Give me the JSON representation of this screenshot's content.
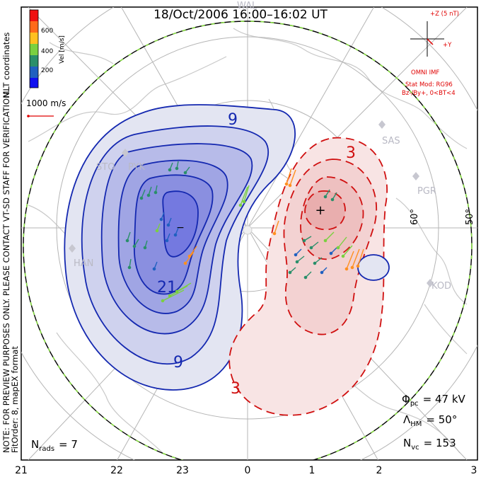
{
  "title": "18/Oct/2006  16:00–16:02  UT",
  "side_text": {
    "coord_system": "MLT coordinates",
    "preview_notice": "NOTE: FOR PREVIEW PURPOSES ONLY. PLEASE CONTACT VT-SD STAFF FOR VERIFICATION.",
    "fit_info": "FitOrder: 8, mapEX format"
  },
  "colorbar": {
    "label": "Vel [m/s]",
    "ticks": [
      "600",
      "400",
      "200"
    ],
    "colors": [
      "#f01010",
      "#ff6a1a",
      "#ffc020",
      "#7ad040",
      "#2a8f6a",
      "#2060c0",
      "#1010f0"
    ]
  },
  "scale_vector": {
    "label": "1000 m/s",
    "color": "#e00000"
  },
  "imf_panel": {
    "z_label": "+Z (5 nT)",
    "y_label": "+Y",
    "source": "OMNI IMF",
    "model_line1": "Stat Mod: RG96",
    "model_line2": "Bz-/By+, 0<BT<4",
    "color": "#e00000"
  },
  "contour_labels": [
    "9",
    "21",
    "9",
    "3",
    "3"
  ],
  "contour_colors": {
    "negative": "#1020b0",
    "positive": "#d01010"
  },
  "stations": [
    "STO",
    "PYK",
    "HAN",
    "SAS",
    "PGR",
    "KOD",
    "WAL"
  ],
  "latitude_labels": [
    "60°",
    "50°"
  ],
  "mlt_labels": [
    "21",
    "22",
    "23",
    "0",
    "1",
    "2",
    "3"
  ],
  "stats": {
    "phi_pc": {
      "symbol": "Φ",
      "sub": "pc",
      "value": "= 47 kV"
    },
    "lambda_hm": {
      "symbol": "Λ",
      "sub": "HM",
      "value": "= 50°"
    },
    "n_vc": {
      "symbol": "N",
      "sub": "vc",
      "value": "= 153"
    },
    "n_rads": {
      "symbol": "N",
      "sub": "rads",
      "value": "= 7"
    }
  }
}
